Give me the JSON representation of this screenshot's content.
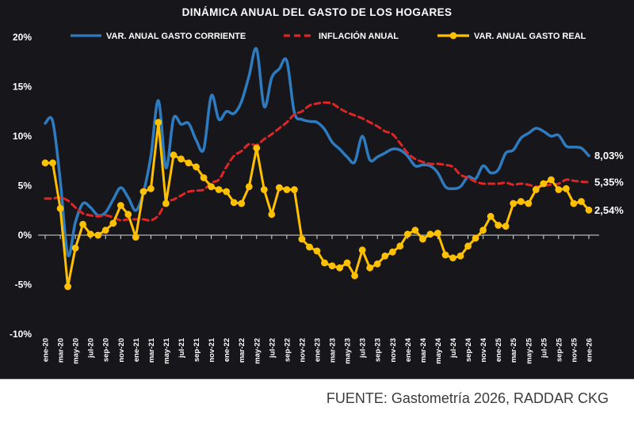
{
  "title": "DINÁMICA ANUAL DEL GASTO DE LOS HOGARES",
  "footer": {
    "source": "FUENTE: Gastometría 2026, RADDAR CKG"
  },
  "colors": {
    "background": "#17171b",
    "blue": "#2e7bbf",
    "red": "#dd2626",
    "yellow": "#ffc000",
    "axis_text": "#ffffff",
    "zero_line": "#d9d9d9",
    "footer_text": "#3b3b3b"
  },
  "chart_data": {
    "type": "line",
    "title": "DINÁMICA ANUAL DEL GASTO DE LOS HOGARES",
    "x_tick_labels": [
      "ene-20",
      "mar-20",
      "may-20",
      "jul-20",
      "sep-20",
      "nov-20",
      "ene-21",
      "mar-21",
      "may-21",
      "jul-21",
      "sep-21",
      "nov-21",
      "ene-22",
      "mar-22",
      "may-22",
      "jul-22",
      "sep-22",
      "nov-22",
      "ene-23",
      "mar-23",
      "may-23",
      "jul-23",
      "sep-23",
      "nov-23",
      "ene-24",
      "mar-24",
      "may-24",
      "jul-24",
      "sep-24",
      "nov-24",
      "ene-25",
      "mar-25",
      "may-25",
      "jul-25",
      "sep-25",
      "nov-25",
      "ene-26"
    ],
    "y_tick_labels": [
      "20%",
      "15%",
      "10%",
      "5%",
      "0%",
      "-5%",
      "-10%"
    ],
    "y_tick_values": [
      20,
      15,
      10,
      5,
      0,
      -5,
      -10
    ],
    "ylim": [
      -10,
      20
    ],
    "grid": "zero-line-only",
    "legend_position": "top",
    "months_span": "ene-20 .. ene-26 (monthly, 73 points)",
    "series": [
      {
        "name": "VAR. ANUAL GASTO CORRIENTE",
        "color": "#2e7bbf",
        "style": "solid",
        "end_label": "8,03%",
        "values": [
          11.3,
          11.5,
          5.5,
          -2.0,
          1.3,
          3.2,
          2.8,
          2.0,
          2.3,
          3.6,
          4.8,
          3.8,
          2.5,
          4.3,
          8.0,
          13.6,
          6.8,
          11.8,
          11.2,
          11.3,
          9.6,
          8.7,
          14.1,
          11.7,
          12.5,
          12.3,
          13.5,
          16.1,
          18.8,
          13.0,
          15.9,
          16.8,
          17.6,
          12.4,
          11.7,
          11.5,
          11.4,
          10.7,
          9.4,
          8.7,
          7.9,
          7.4,
          10.0,
          7.6,
          7.9,
          8.3,
          8.7,
          8.6,
          8.0,
          7.0,
          7.1,
          7.0,
          6.3,
          4.9,
          4.7,
          4.9,
          5.9,
          5.7,
          7.0,
          6.3,
          6.6,
          8.3,
          8.6,
          9.8,
          10.3,
          10.8,
          10.5,
          10.0,
          10.1,
          9.0,
          8.9,
          8.8,
          8.03
        ]
      },
      {
        "name": "INFLACIÓN ANUAL",
        "color": "#dd2626",
        "style": "dashed",
        "end_label": "5,35%",
        "values": [
          3.7,
          3.7,
          3.8,
          3.5,
          2.8,
          2.2,
          2.0,
          1.9,
          2.0,
          1.8,
          1.5,
          1.6,
          1.6,
          1.6,
          1.5,
          2.0,
          3.3,
          3.6,
          4.0,
          4.4,
          4.5,
          4.6,
          5.3,
          5.6,
          6.9,
          8.0,
          8.5,
          9.2,
          9.1,
          9.7,
          10.2,
          10.8,
          11.4,
          12.2,
          12.5,
          13.1,
          13.3,
          13.4,
          13.3,
          12.8,
          12.4,
          12.1,
          11.8,
          11.4,
          11.0,
          10.5,
          10.2,
          9.3,
          8.3,
          7.7,
          7.4,
          7.2,
          7.2,
          7.1,
          6.9,
          6.1,
          5.8,
          5.4,
          5.2,
          5.2,
          5.2,
          5.3,
          5.1,
          5.2,
          5.1,
          4.9,
          5.0,
          5.1,
          5.2,
          5.6,
          5.5,
          5.4,
          5.35
        ]
      },
      {
        "name": "VAR. ANUAL GASTO REAL",
        "color": "#ffc000",
        "style": "solid-markers",
        "end_label": "2,54%",
        "values": [
          7.3,
          7.3,
          2.7,
          -5.2,
          -1.3,
          1.1,
          0.1,
          0.0,
          0.5,
          1.2,
          3.0,
          2.1,
          -0.2,
          4.4,
          4.7,
          11.4,
          3.2,
          8.1,
          7.7,
          7.3,
          6.9,
          5.8,
          4.9,
          4.6,
          4.4,
          3.3,
          3.2,
          4.9,
          8.8,
          4.6,
          2.1,
          4.8,
          4.6,
          4.6,
          -0.4,
          -1.2,
          -1.6,
          -2.8,
          -3.1,
          -3.3,
          -2.8,
          -4.1,
          -1.5,
          -3.3,
          -2.9,
          -2.1,
          -1.7,
          -1.1,
          0.1,
          0.5,
          -0.4,
          0.1,
          0.2,
          -2.0,
          -2.3,
          -2.1,
          -1.1,
          -0.3,
          0.5,
          1.9,
          1.0,
          0.9,
          3.2,
          3.4,
          3.2,
          4.6,
          5.2,
          5.6,
          4.6,
          4.7,
          3.2,
          3.4,
          2.54
        ]
      }
    ]
  }
}
